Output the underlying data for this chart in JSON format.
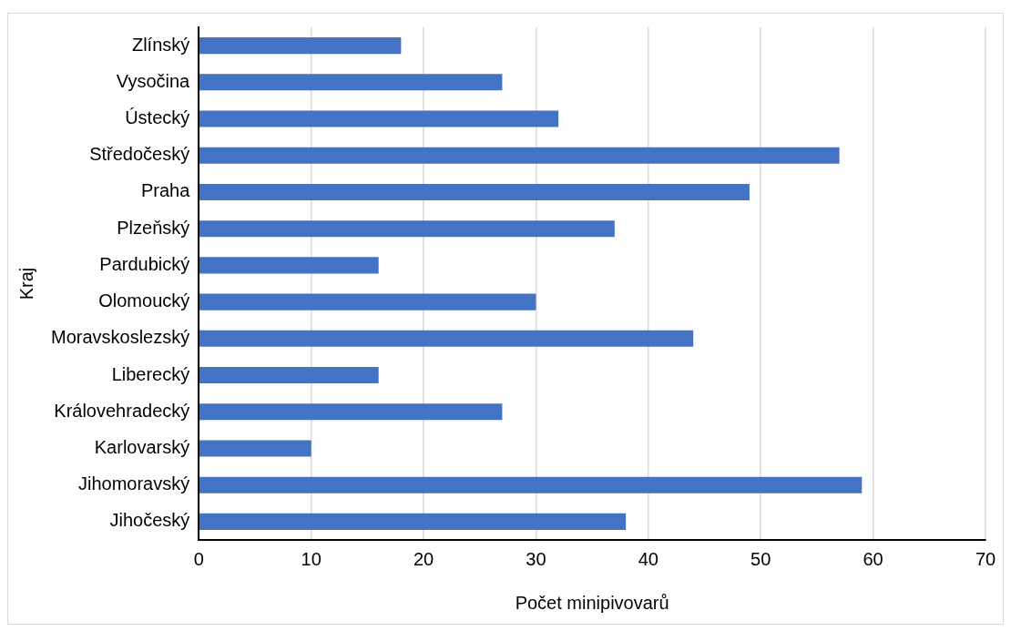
{
  "chart_data": {
    "type": "bar",
    "orientation": "horizontal",
    "xlabel": "Počet minipivovarů",
    "ylabel": "Kraj",
    "categories": [
      "Zlínský",
      "Vysočina",
      "Ústecký",
      "Středočeský",
      "Praha",
      "Plzeňský",
      "Pardubický",
      "Olomoucký",
      "Moravskoslezský",
      "Liberecký",
      "Královehradecký",
      "Karlovarský",
      "Jihomoravský",
      "Jihočeský"
    ],
    "values": [
      18,
      27,
      32,
      57,
      49,
      37,
      16,
      30,
      44,
      16,
      27,
      10,
      59,
      38
    ],
    "color": "#4472c4",
    "xlim": [
      0,
      70
    ],
    "xticks": [
      0,
      10,
      20,
      30,
      40,
      50,
      60,
      70
    ],
    "grid": "x",
    "legend": false
  }
}
